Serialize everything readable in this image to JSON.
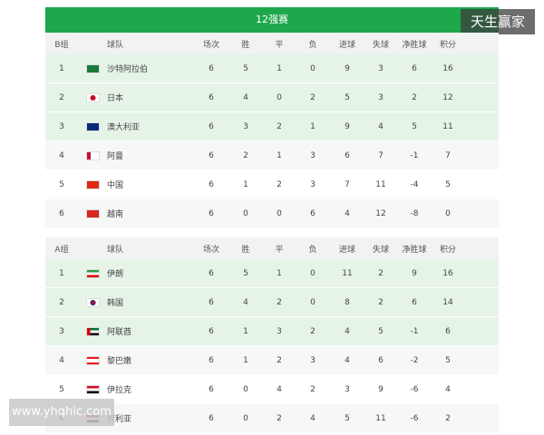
{
  "title": "12强赛",
  "watermark": "天生赢家",
  "site": "www.yhqhic.com",
  "groups": [
    {
      "headers": [
        "B组",
        "球队",
        "场次",
        "胜",
        "平",
        "负",
        "进球",
        "失球",
        "净胜球",
        "积分"
      ],
      "rows": [
        [
          1,
          "沙特阿拉伯",
          6,
          5,
          1,
          0,
          9,
          3,
          6,
          16
        ],
        [
          2,
          "日本",
          6,
          4,
          0,
          2,
          5,
          3,
          2,
          12
        ],
        [
          3,
          "澳大利亚",
          6,
          3,
          2,
          1,
          9,
          4,
          5,
          11
        ],
        [
          4,
          "阿曼",
          6,
          2,
          1,
          3,
          6,
          7,
          -1,
          7
        ],
        [
          5,
          "中国",
          6,
          1,
          2,
          3,
          7,
          11,
          -4,
          5
        ],
        [
          6,
          "越南",
          6,
          0,
          0,
          6,
          4,
          12,
          -8,
          0
        ]
      ]
    },
    {
      "headers": [
        "A组",
        "球队",
        "场次",
        "胜",
        "平",
        "负",
        "进球",
        "失球",
        "净胜球",
        "积分"
      ],
      "rows": [
        [
          1,
          "伊朗",
          6,
          5,
          1,
          0,
          11,
          2,
          9,
          16
        ],
        [
          2,
          "韩国",
          6,
          4,
          2,
          0,
          8,
          2,
          6,
          14
        ],
        [
          3,
          "阿联酋",
          6,
          1,
          3,
          2,
          4,
          5,
          -1,
          6
        ],
        [
          4,
          "黎巴嫩",
          6,
          1,
          2,
          3,
          4,
          6,
          -2,
          5
        ],
        [
          5,
          "伊拉克",
          6,
          0,
          4,
          2,
          3,
          9,
          -6,
          4
        ],
        [
          6,
          "叙利亚",
          6,
          0,
          2,
          4,
          5,
          11,
          -6,
          2
        ]
      ]
    }
  ]
}
